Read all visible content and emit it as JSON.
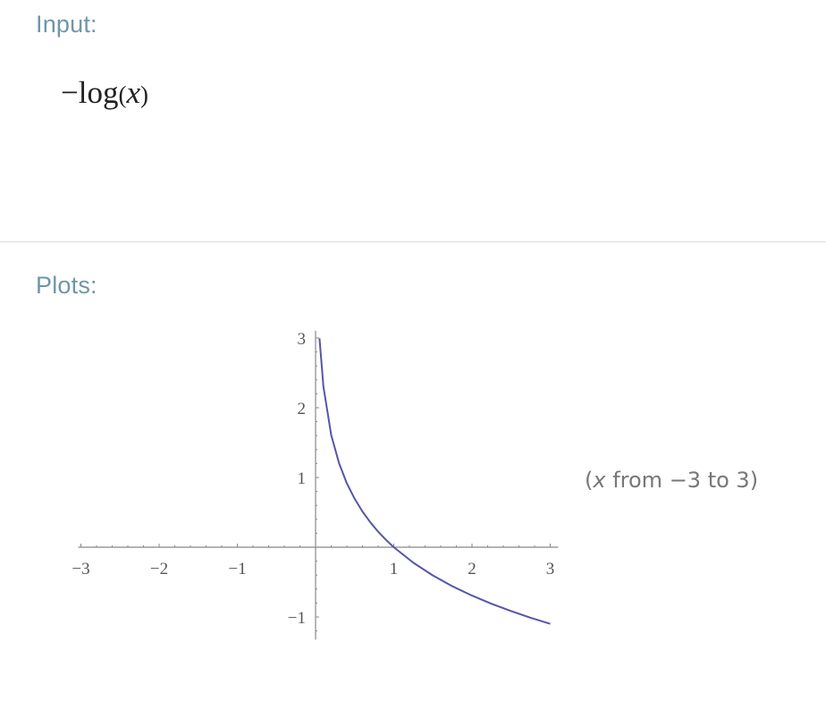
{
  "input_section": {
    "title": "Input:",
    "formula": {
      "sign": "−",
      "function": "log",
      "open": "(",
      "variable": "x",
      "close": ")"
    }
  },
  "plots_section": {
    "title": "Plots:",
    "range_note": {
      "open": "(",
      "variable": "x",
      "text": " from −3 to 3)"
    }
  },
  "colors": {
    "section_title": "#6f97a8",
    "curve": "#5555aa",
    "axis": "#888888"
  },
  "chart_data": {
    "type": "line",
    "title": "",
    "xlabel": "",
    "ylabel": "",
    "xlim": [
      -3,
      3
    ],
    "ylim": [
      -1.3,
      3
    ],
    "x_ticks": [
      "−3",
      "−2",
      "−1",
      "1",
      "2",
      "3"
    ],
    "y_ticks": [
      "3",
      "2",
      "1",
      "−1"
    ],
    "grid": false,
    "legend": "none",
    "series": [
      {
        "function": "-log(x)",
        "x": [
          0.05,
          0.1,
          0.2,
          0.3,
          0.4,
          0.5,
          0.6,
          0.7,
          0.8,
          0.9,
          1.0,
          1.25,
          1.5,
          1.75,
          2.0,
          2.25,
          2.5,
          2.75,
          3.0
        ],
        "y": [
          2.996,
          2.303,
          1.609,
          1.204,
          0.916,
          0.693,
          0.511,
          0.357,
          0.223,
          0.105,
          0.0,
          -0.223,
          -0.405,
          -0.56,
          -0.693,
          -0.811,
          -0.916,
          -1.012,
          -1.099
        ]
      }
    ]
  }
}
